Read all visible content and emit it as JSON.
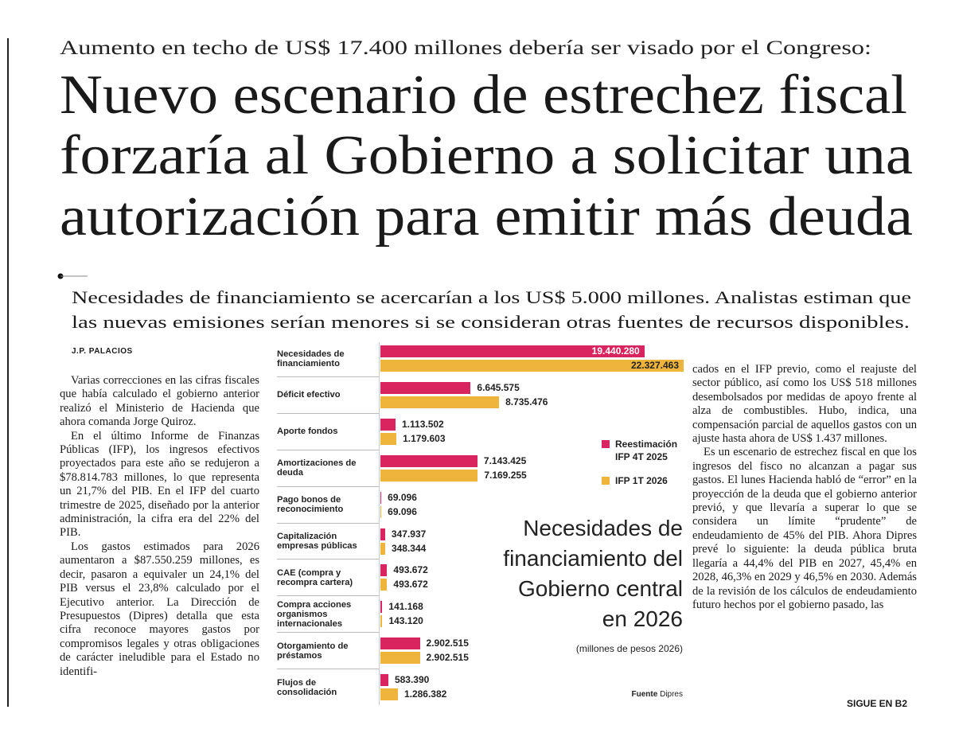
{
  "kicker": "Aumento en techo de US$ 17.400 millones debería ser visado por el Congreso:",
  "headline": [
    "Nuevo escenario de estrechez fiscal",
    "forzaría al Gobierno a solicitar una",
    "autorización para emitir más deuda"
  ],
  "deck": [
    "Necesidades de financiamiento se acercarían a los US$ 5.000 millones. Analistas estiman que",
    "las nuevas emisiones serían menores si se consideran otras fuentes de recursos disponibles."
  ],
  "byline": "J.P. PALACIOS",
  "left_column": [
    "Varias correcciones en las cifras fiscales que había calculado el gobierno anterior realizó el Ministerio de Hacienda que ahora comanda Jorge Quiroz.",
    "En el último Informe de Finanzas Públicas (IFP), los ingresos efectivos proyectados para este año se redujeron a $78.814.783 millones, lo que representa un 21,7% del PIB. En el IFP del cuarto trimestre de 2025, diseñado por la anterior administración, la cifra era del 22% del PIB.",
    "Los gastos estimados para 2026 aumentaron a $87.550.259 millones, es decir, pasaron a equivaler un 24,1% del PIB versus el 23,8% calculado por el Ejecutivo anterior. La Dirección de Presupuestos (Dipres) detalla que esta cifra reconoce mayores gastos por compromisos legales y otras obligaciones de carácter ineludible para el Estado no identifi-"
  ],
  "right_column": [
    "cados en el IFP previo, como el reajuste del sector público, así como los US$ 518 millones desembolsados por medidas de apoyo frente al alza de combustibles. Hubo, indica, una compensación parcial de aquellos gastos con un ajuste hasta ahora de US$ 1.437 millones.",
    "Es un escenario de estrechez fiscal en que los ingresos del fisco no alcanzan a pagar sus gastos. El lunes Hacienda habló de “error” en la proyección de la deuda que el gobierno anterior previó, y que llevaría a superar lo que se considera un límite “prudente” de endeudamiento de 45% del PIB. Ahora Dipres prevé lo siguiente: la deuda pública bruta llegaría a 44,4% del PIB en 2027, 45,4% en 2028, 46,3% en 2029 y 46,5% en 2030. Además de la revisión de los cálculos de endeudamiento futuro hechos por el gobierno pasado, las"
  ],
  "footer": "SIGUE EN B2",
  "chart_data": {
    "type": "bar",
    "orientation": "horizontal",
    "title": [
      "Necesidades de",
      "financiamiento del",
      "Gobierno central",
      "en 2026"
    ],
    "subtitle": "(millones de pesos 2026)",
    "source_label": "Fuente",
    "source": "Dipres",
    "categories": [
      "Necesidades de financiamiento",
      "Déficit efectivo",
      "Aporte fondos",
      "Amortizaciones de deuda",
      "Pago bonos de reconocimiento",
      "Capitalización empresas públicas",
      "CAE (compra y recompra cartera)",
      "Compra acciones organismos internacionales",
      "Otorgamiento de préstamos",
      "Flujos de consolidación"
    ],
    "series": [
      {
        "name": "Reestimación IFP 4T 2025",
        "color": "#d8245f",
        "values": [
          19440280,
          6645575,
          1113502,
          7143425,
          69096,
          347937,
          493672,
          141168,
          2902515,
          583390
        ],
        "value_labels": [
          "19.440.280",
          "6.645.575",
          "1.113.502",
          "7.143.425",
          "69.096",
          "347.937",
          "493.672",
          "141.168",
          "2.902.515",
          "583.390"
        ]
      },
      {
        "name": "IFP 1T 2026",
        "color": "#efb43c",
        "values": [
          22327463,
          8735476,
          1179603,
          7169255,
          69096,
          348344,
          493672,
          143120,
          2902515,
          1286382
        ],
        "value_labels": [
          "22.327.463",
          "8.735.476",
          "1.179.603",
          "7.169.255",
          "69.096",
          "348.344",
          "493.672",
          "143.120",
          "2.902.515",
          "1.286.382"
        ]
      }
    ]
  }
}
